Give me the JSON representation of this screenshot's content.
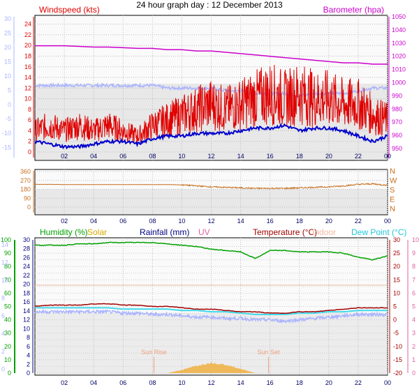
{
  "title": "24 hour graph day : 12 December 2013",
  "x_ticks": [
    "02",
    "04",
    "06",
    "08",
    "10",
    "12",
    "14",
    "16",
    "18",
    "20",
    "22",
    "00"
  ],
  "panel1": {
    "left_title": "Windspeed (kts)",
    "right_title": "Barometer (hpa)",
    "wind_ticks": [
      "24",
      "22",
      "20",
      "18",
      "16",
      "14",
      "12",
      "10",
      "8",
      "6",
      "4",
      "2",
      "0"
    ],
    "far_left_ticks": [
      "30",
      "25",
      "20",
      "15",
      "10",
      "5",
      "0",
      "-5",
      "-10",
      "-15"
    ],
    "baro_ticks": [
      "1050",
      "1040",
      "1030",
      "1020",
      "1010",
      "1000",
      "990",
      "980",
      "970",
      "960",
      "950"
    ]
  },
  "panel2": {
    "dir_ticks": [
      "360",
      "270",
      "180",
      "90",
      "0"
    ],
    "compass": [
      "N",
      "W",
      "S",
      "E",
      "N"
    ]
  },
  "panel3": {
    "legend": {
      "humidity": "Humidity (%)",
      "solar": "Solar",
      "rainfall": "Rainfall (mm)",
      "uv": "UV",
      "temperature": "Temperature (°C)",
      "indoor": "Indoor",
      "dewpoint": "Dew Point (°C)"
    },
    "humidity_ticks": [
      "100",
      "90",
      "80",
      "70",
      "60",
      "50",
      "40",
      "30",
      "20",
      "10",
      "0"
    ],
    "rain_ticks": [
      "30",
      "28",
      "26",
      "24",
      "22",
      "20",
      "18",
      "16",
      "14",
      "12",
      "10",
      "8",
      "6",
      "4",
      "2",
      "0"
    ],
    "far_left_ticks": [
      "14",
      "12",
      "10",
      "8",
      "6",
      "4",
      "2",
      "0"
    ],
    "temp_ticks": [
      "30",
      "25",
      "20",
      "15",
      "10",
      "5",
      "0",
      "-5",
      "-10",
      "-15",
      "-20"
    ],
    "uv_ticks": [
      "10",
      "9",
      "8",
      "7",
      "6",
      "5",
      "4",
      "3",
      "2",
      "1",
      "0"
    ],
    "sun_rise": "Sun Rise",
    "sun_set": "Sun Set"
  },
  "colors": {
    "wind": "#e00000",
    "gust": "#0000cc",
    "baro": "#cc00cc",
    "wind_chill": "#aab4ff",
    "direction": "#c87020",
    "humidity": "#00a000",
    "temperature": "#a00000",
    "dewpoint": "#40d8e8",
    "indoor": "#f0b8a0",
    "apparent": "#aab4ff",
    "solar": "#f0b040",
    "rainfall": "#000080",
    "uv": "#e060a0"
  },
  "chart_data": [
    {
      "type": "line",
      "title": "",
      "xlabel": "",
      "x": [
        0,
        1,
        2,
        3,
        4,
        5,
        6,
        7,
        8,
        9,
        10,
        11,
        12,
        13,
        14,
        15,
        16,
        17,
        18,
        19,
        20,
        21,
        22,
        23,
        24
      ],
      "series": [
        {
          "name": "Windspeed (kts)",
          "axis": "wind",
          "values": [
            4,
            5,
            4,
            5,
            4,
            5,
            4,
            3,
            5,
            6,
            7,
            8,
            9,
            8,
            9,
            10,
            11,
            10,
            11,
            10,
            10,
            9,
            9,
            7,
            6
          ]
        },
        {
          "name": "",
          "axis": "wind",
          "values": [
            2,
            1.5,
            1,
            1,
            1.5,
            2,
            2,
            1.5,
            2.5,
            3,
            3,
            3.5,
            3.5,
            3.5,
            4,
            4.5,
            4.5,
            5,
            4,
            4.5,
            4.5,
            4,
            3,
            2,
            3
          ]
        },
        {
          "name": "Barometer (hpa)",
          "axis": "baro",
          "values": [
            1028,
            1028,
            1028,
            1027.5,
            1027,
            1027,
            1026.5,
            1026,
            1026,
            1025,
            1025,
            1024,
            1024,
            1023,
            1022,
            1021,
            1020,
            1019,
            1018,
            1017,
            1016,
            1015,
            1015,
            1014,
            1014
          ]
        },
        {
          "name": "",
          "axis": "wind",
          "values": [
            12.5,
            12.5,
            12.5,
            12.5,
            12.5,
            12.5,
            12.5,
            12.5,
            12.5,
            12,
            12,
            12,
            12,
            11.5,
            11.5,
            11,
            11,
            11,
            10.5,
            11,
            11,
            11,
            11.5,
            12,
            12
          ]
        }
      ],
      "wind_range": [
        0,
        25
      ],
      "baro_range": [
        945,
        1052
      ],
      "grid": true
    },
    {
      "type": "line",
      "title": "",
      "x": [
        0,
        1,
        2,
        3,
        4,
        5,
        6,
        7,
        8,
        9,
        10,
        11,
        12,
        13,
        14,
        15,
        16,
        17,
        18,
        19,
        20,
        21,
        22,
        23,
        24
      ],
      "series": [
        {
          "name": "",
          "values": [
            230,
            230,
            228,
            228,
            228,
            228,
            228,
            228,
            228,
            228,
            225,
            215,
            205,
            200,
            195,
            190,
            190,
            190,
            195,
            200,
            205,
            215,
            230,
            235,
            220
          ]
        }
      ],
      "range": [
        0,
        360
      ],
      "grid": true
    },
    {
      "type": "line",
      "title": "",
      "x": [
        0,
        1,
        2,
        3,
        4,
        5,
        6,
        7,
        8,
        9,
        10,
        11,
        12,
        13,
        14,
        15,
        16,
        17,
        18,
        19,
        20,
        21,
        22,
        23,
        24
      ],
      "series": [
        {
          "name": "Humidity (%)",
          "axis": "humidity",
          "values": [
            96,
            96,
            96,
            97,
            97,
            98,
            98,
            98,
            98,
            97,
            96,
            95,
            93,
            92,
            91,
            86,
            92,
            92,
            91,
            91,
            91,
            90,
            87,
            85,
            88
          ]
        },
        {
          "name": "Temperature (°C)",
          "axis": "temp",
          "values": [
            5,
            5.5,
            5.5,
            5.5,
            6,
            6,
            5.5,
            5.5,
            5,
            5,
            4.5,
            4,
            4,
            3.5,
            3,
            3,
            2.5,
            2.5,
            3,
            3,
            3.5,
            4,
            4.5,
            4.5,
            4.5
          ]
        },
        {
          "name": "Dew Point (°C)",
          "axis": "temp",
          "values": [
            4.5,
            4.5,
            4.5,
            4.5,
            4.5,
            4.5,
            4,
            4,
            4,
            4,
            3.5,
            3.5,
            3,
            3,
            2.5,
            2,
            2,
            2,
            2.5,
            2.5,
            3,
            3,
            3.5,
            3.5,
            3.5
          ]
        },
        {
          "name": "",
          "axis": "temp",
          "values": [
            3,
            3,
            3,
            3,
            3,
            3,
            2.5,
            2.5,
            2,
            2,
            1.5,
            1,
            1,
            0.5,
            0.5,
            0,
            0,
            -0.5,
            0,
            0.5,
            1,
            1.5,
            2,
            2,
            2
          ]
        },
        {
          "name": "Indoor",
          "axis": "temp",
          "values": [
            13,
            13,
            13,
            13,
            13,
            13,
            13,
            13,
            13,
            13,
            13,
            13,
            13,
            13,
            13,
            13,
            13,
            13,
            13,
            13,
            13,
            13,
            13,
            13,
            13
          ]
        },
        {
          "name": "Solar",
          "axis": "solar_px",
          "values": [
            0,
            0,
            0,
            0,
            0,
            0,
            0,
            0,
            0,
            0,
            0.3,
            0.7,
            1.0,
            0.8,
            0.4,
            0,
            0,
            0,
            0,
            0,
            0,
            0,
            0,
            0,
            0
          ]
        }
      ],
      "humidity_range": [
        0,
        100
      ],
      "temp_range": [
        -20,
        30
      ],
      "grid": true
    }
  ]
}
